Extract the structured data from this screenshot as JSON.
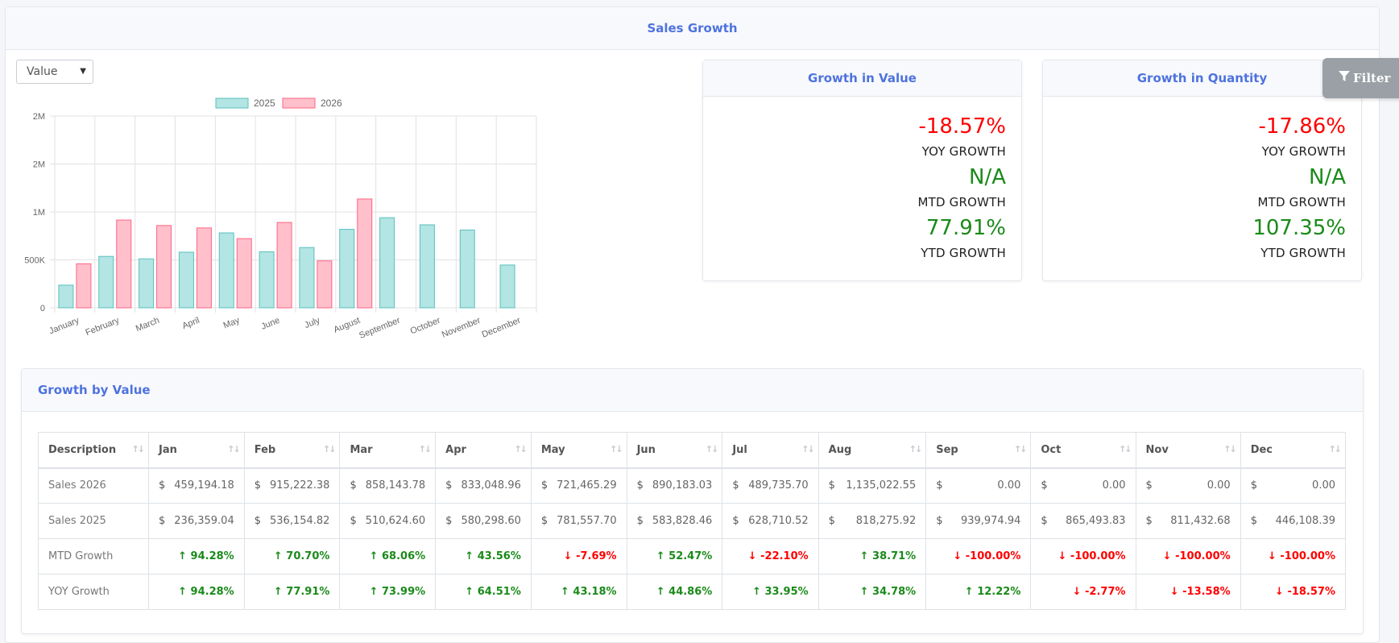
{
  "page": {
    "title": "Sales Growth"
  },
  "filter": {
    "label": "Filter",
    "icon": "filter-icon"
  },
  "chart_control": {
    "selected": "Value"
  },
  "chart_data": {
    "type": "bar",
    "categories": [
      "January",
      "February",
      "March",
      "April",
      "May",
      "June",
      "July",
      "August",
      "September",
      "October",
      "November",
      "December"
    ],
    "series": [
      {
        "name": "2025",
        "color": "#b2e5e3",
        "border": "#5bc0bd",
        "values": [
          236359.04,
          536154.82,
          510624.6,
          580298.6,
          781557.7,
          583828.46,
          628710.52,
          818275.92,
          939974.94,
          865493.83,
          811432.68,
          446108.39
        ]
      },
      {
        "name": "2026",
        "color": "#ffc0cc",
        "border": "#ff6384",
        "values": [
          459194.18,
          915222.38,
          858143.78,
          833048.96,
          721465.29,
          890183.03,
          489735.7,
          1135022.55,
          0,
          0,
          0,
          0
        ]
      }
    ],
    "yticks": [
      "0",
      "500K",
      "1M",
      "2M",
      "2M"
    ],
    "ylim": [
      0,
      2000000
    ],
    "legend": "top",
    "grid": true
  },
  "value_card": {
    "title": "Growth in Value",
    "yoy": {
      "value": "-18.57%",
      "label": "YOY GROWTH"
    },
    "mtd": {
      "value": "N/A",
      "label": "MTD GROWTH"
    },
    "ytd": {
      "value": "77.91%",
      "label": "YTD GROWTH"
    }
  },
  "qty_card": {
    "title": "Growth in Quantity",
    "yoy": {
      "value": "-17.86%",
      "label": "YOY GROWTH"
    },
    "mtd": {
      "value": "N/A",
      "label": "MTD GROWTH"
    },
    "ytd": {
      "value": "107.35%",
      "label": "YTD GROWTH"
    }
  },
  "table": {
    "title": "Growth by Value",
    "headers": [
      "Description",
      "Jan",
      "Feb",
      "Mar",
      "Apr",
      "May",
      "Jun",
      "Jul",
      "Aug",
      "Sep",
      "Oct",
      "Nov",
      "Dec"
    ],
    "currency": "$",
    "sales_2026": {
      "label": "Sales 2026",
      "values": [
        "459,194.18",
        "915,222.38",
        "858,143.78",
        "833,048.96",
        "721,465.29",
        "890,183.03",
        "489,735.70",
        "1,135,022.55",
        "0.00",
        "0.00",
        "0.00",
        "0.00"
      ]
    },
    "sales_2025": {
      "label": "Sales 2025",
      "values": [
        "236,359.04",
        "536,154.82",
        "510,624.60",
        "580,298.60",
        "781,557.70",
        "583,828.46",
        "628,710.52",
        "818,275.92",
        "939,974.94",
        "865,493.83",
        "811,432.68",
        "446,108.39"
      ]
    },
    "mtd_growth": {
      "label": "MTD Growth",
      "values": [
        "↑ 94.28%",
        "↑ 70.70%",
        "↑ 68.06%",
        "↑ 43.56%",
        "↓ -7.69%",
        "↑ 52.47%",
        "↓ -22.10%",
        "↑ 38.71%",
        "↓ -100.00%",
        "↓ -100.00%",
        "↓ -100.00%",
        "↓ -100.00%"
      ]
    },
    "yoy_growth": {
      "label": "YOY Growth",
      "values": [
        "↑ 94.28%",
        "↑ 77.91%",
        "↑ 73.99%",
        "↑ 64.51%",
        "↑ 43.18%",
        "↑ 44.86%",
        "↑ 33.95%",
        "↑ 34.78%",
        "↑ 12.22%",
        "↓ -2.77%",
        "↓ -13.58%",
        "↓ -18.57%"
      ]
    }
  }
}
